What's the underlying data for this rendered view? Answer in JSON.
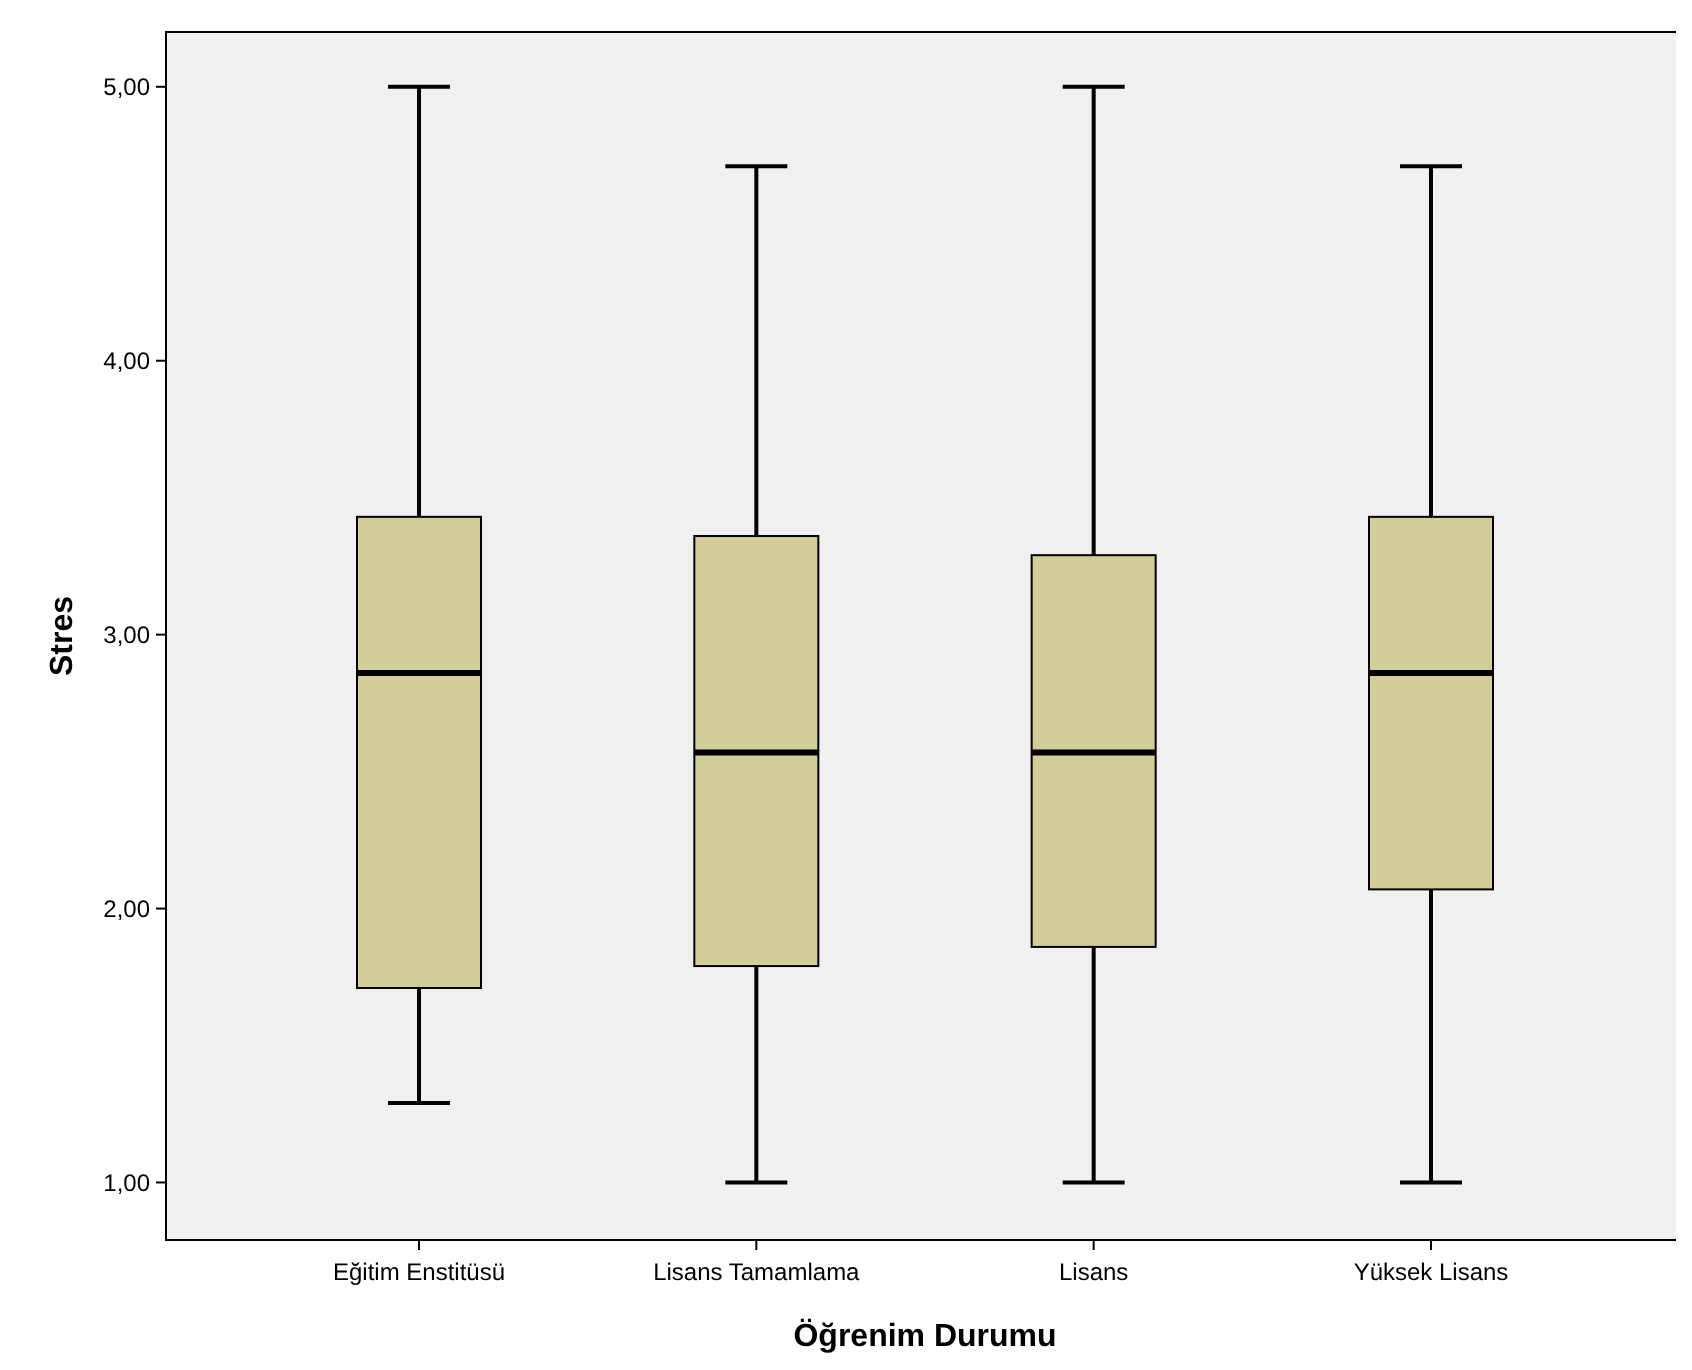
{
  "chart_data": {
    "type": "box",
    "xlabel": "Öğrenim Durumu",
    "ylabel": "Stres",
    "categories": [
      "Eğitim Enstitüsü",
      "Lisans Tamamlama",
      "Lisans",
      "Yüksek Lisans"
    ],
    "boxes": [
      {
        "low": 1.29,
        "q1": 1.71,
        "median": 2.86,
        "q3": 3.43,
        "high": 5.0
      },
      {
        "low": 1.0,
        "q1": 1.79,
        "median": 2.57,
        "q3": 3.36,
        "high": 4.71
      },
      {
        "low": 1.0,
        "q1": 1.86,
        "median": 2.57,
        "q3": 3.29,
        "high": 5.0
      },
      {
        "low": 1.0,
        "q1": 2.07,
        "median": 2.86,
        "q3": 3.43,
        "high": 4.71
      }
    ],
    "color": "#d3ce97",
    "ylim": [
      0.79,
      5.2
    ],
    "yticks": [
      {
        "value": 1,
        "label": "1,00"
      },
      {
        "value": 2,
        "label": "2,00"
      },
      {
        "value": 3,
        "label": "3,00"
      },
      {
        "value": 4,
        "label": "4,00"
      },
      {
        "value": 5,
        "label": "5,00"
      }
    ],
    "grid": false
  }
}
